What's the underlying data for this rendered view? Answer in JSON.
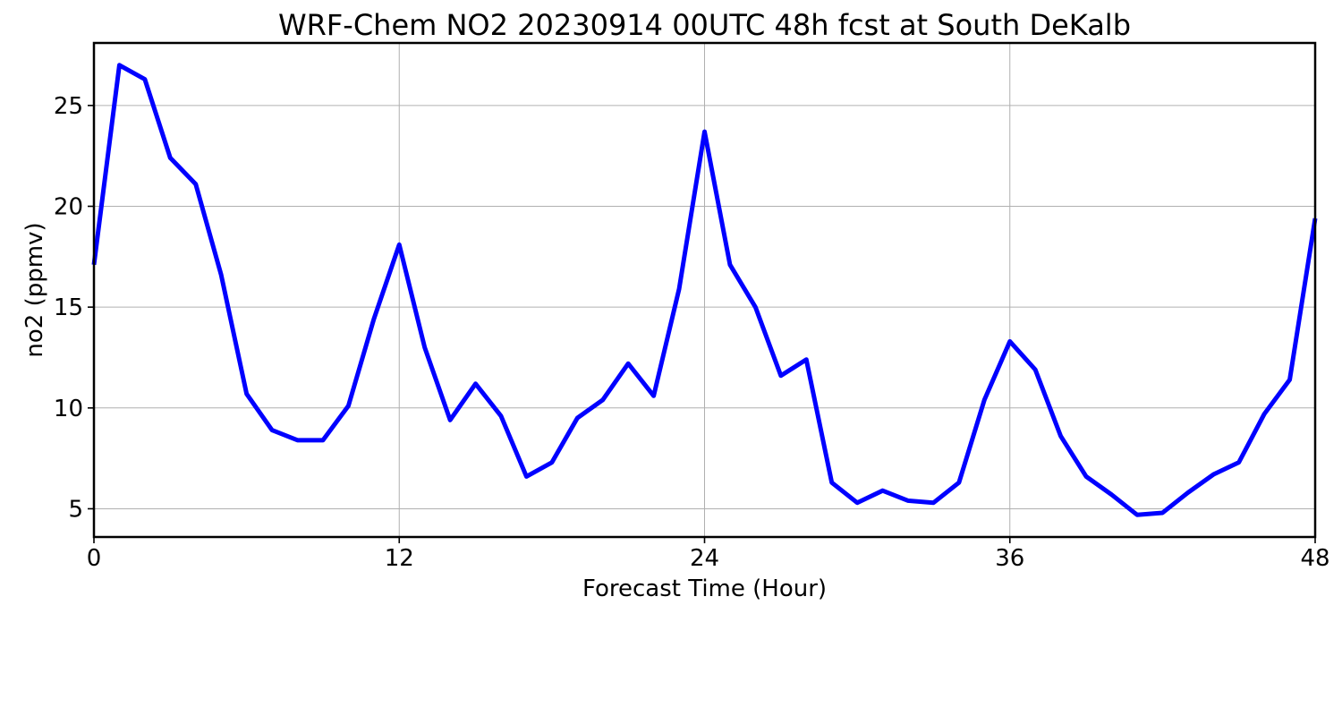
{
  "chart_data": {
    "type": "line",
    "title": "WRF-Chem NO2  20230914 00UTC 48h fcst at South DeKalb",
    "xlabel": "Forecast Time (Hour)",
    "ylabel": "no2  (ppmv)",
    "xlim": [
      0,
      48
    ],
    "ylim": [
      3.6,
      28.1
    ],
    "xticks": [
      0,
      12,
      24,
      36,
      48
    ],
    "xtick_labels": [
      "0",
      "12",
      "24",
      "36",
      "48"
    ],
    "yticks": [
      5,
      10,
      15,
      20,
      25
    ],
    "ytick_labels": [
      "5",
      "10",
      "15",
      "20",
      "25"
    ],
    "grid": true,
    "legend": "none",
    "line_color": "#0000ff",
    "x": [
      0,
      1,
      2,
      3,
      4,
      5,
      6,
      7,
      8,
      9,
      10,
      11,
      12,
      13,
      14,
      15,
      16,
      17,
      18,
      19,
      20,
      21,
      22,
      23,
      24,
      25,
      26,
      27,
      28,
      29,
      30,
      31,
      32,
      33,
      34,
      35,
      36,
      37,
      38,
      39,
      40,
      41,
      42,
      43,
      44,
      45,
      46,
      47,
      48
    ],
    "series": [
      {
        "values": [
          17.1,
          27.0,
          26.3,
          22.4,
          21.1,
          16.6,
          10.7,
          8.9,
          8.4,
          8.4,
          10.1,
          14.4,
          18.1,
          13.0,
          9.4,
          11.2,
          9.6,
          6.6,
          7.3,
          9.5,
          10.4,
          12.2,
          10.6,
          15.9,
          23.7,
          17.1,
          15.0,
          11.6,
          12.4,
          6.3,
          5.3,
          5.9,
          5.4,
          5.3,
          6.3,
          10.4,
          13.3,
          11.9,
          8.6,
          6.6,
          5.7,
          4.7,
          4.8,
          5.8,
          6.7,
          7.3,
          9.7,
          11.4,
          19.4
        ]
      }
    ]
  }
}
